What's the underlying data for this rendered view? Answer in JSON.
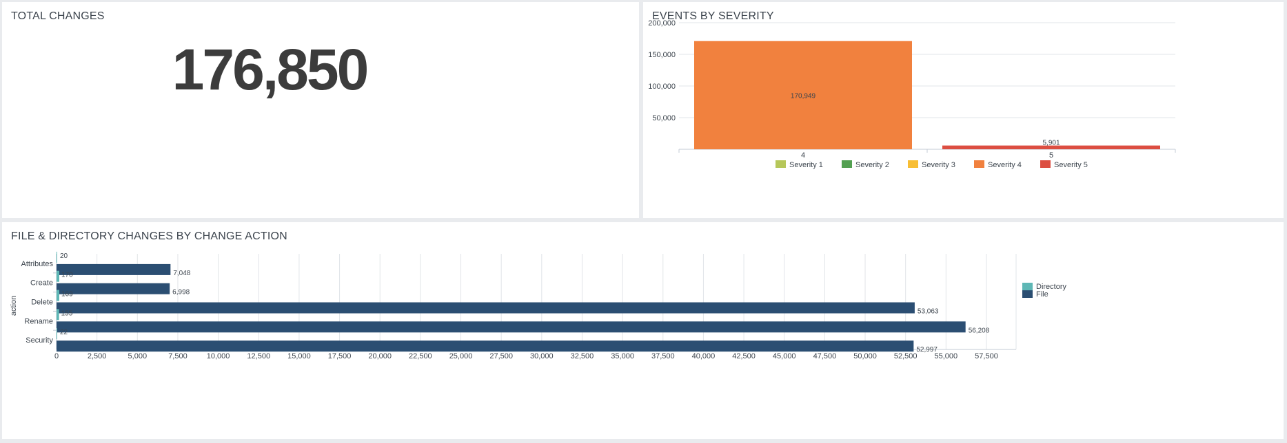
{
  "total_changes": {
    "title": "TOTAL CHANGES",
    "value": "176,850"
  },
  "chart_data": [
    {
      "type": "bar",
      "title": "EVENTS BY SEVERITY",
      "categories": [
        "4",
        "5"
      ],
      "values": [
        170949,
        5901
      ],
      "value_labels": [
        "170,949",
        "5,901"
      ],
      "bar_colors": [
        "#f1813e",
        "#dc4e41"
      ],
      "ylim": [
        0,
        200000
      ],
      "yticks": [
        50000,
        100000,
        150000,
        200000
      ],
      "ytick_labels": [
        "50,000",
        "100,000",
        "150,000",
        "200,000"
      ],
      "xlabel": "",
      "ylabel": "",
      "legend_position": "bottom",
      "legend": [
        {
          "label": "Severity 1",
          "color": "#b6c75a"
        },
        {
          "label": "Severity 2",
          "color": "#53a051"
        },
        {
          "label": "Severity 3",
          "color": "#f8be34"
        },
        {
          "label": "Severity 4",
          "color": "#f1813e"
        },
        {
          "label": "Severity 5",
          "color": "#dc4e41"
        }
      ]
    },
    {
      "type": "bar",
      "orientation": "horizontal",
      "title": "FILE & DIRECTORY CHANGES BY CHANGE ACTION",
      "categories": [
        "Attributes",
        "Create",
        "Delete",
        "Rename",
        "Security"
      ],
      "ylabel": "action",
      "xlabel": "",
      "xlim": [
        0,
        57500
      ],
      "xticks": [
        0,
        2500,
        5000,
        7500,
        10000,
        12500,
        15000,
        17500,
        20000,
        22500,
        25000,
        27500,
        30000,
        32500,
        35000,
        37500,
        40000,
        42500,
        45000,
        47500,
        50000,
        52500,
        55000,
        57500
      ],
      "xtick_labels": [
        "0",
        "2,500",
        "5,000",
        "7,500",
        "10,000",
        "12,500",
        "15,000",
        "17,500",
        "20,000",
        "22,500",
        "25,000",
        "27,500",
        "30,000",
        "32,500",
        "35,000",
        "37,500",
        "40,000",
        "42,500",
        "45,000",
        "47,500",
        "50,000",
        "52,500",
        "55,000",
        "57,500"
      ],
      "legend_position": "right",
      "series": [
        {
          "name": "Directory",
          "color": "#5eb7b5",
          "values": [
            20,
            170,
            169,
            155,
            22
          ],
          "value_labels": [
            "20",
            "170",
            "169",
            "155",
            "22"
          ]
        },
        {
          "name": "File",
          "color": "#2b4e72",
          "values": [
            7048,
            6998,
            53063,
            56208,
            52997
          ],
          "value_labels": [
            "7,048",
            "6,998",
            "53,063",
            "56,208",
            "52,997"
          ]
        }
      ]
    }
  ]
}
